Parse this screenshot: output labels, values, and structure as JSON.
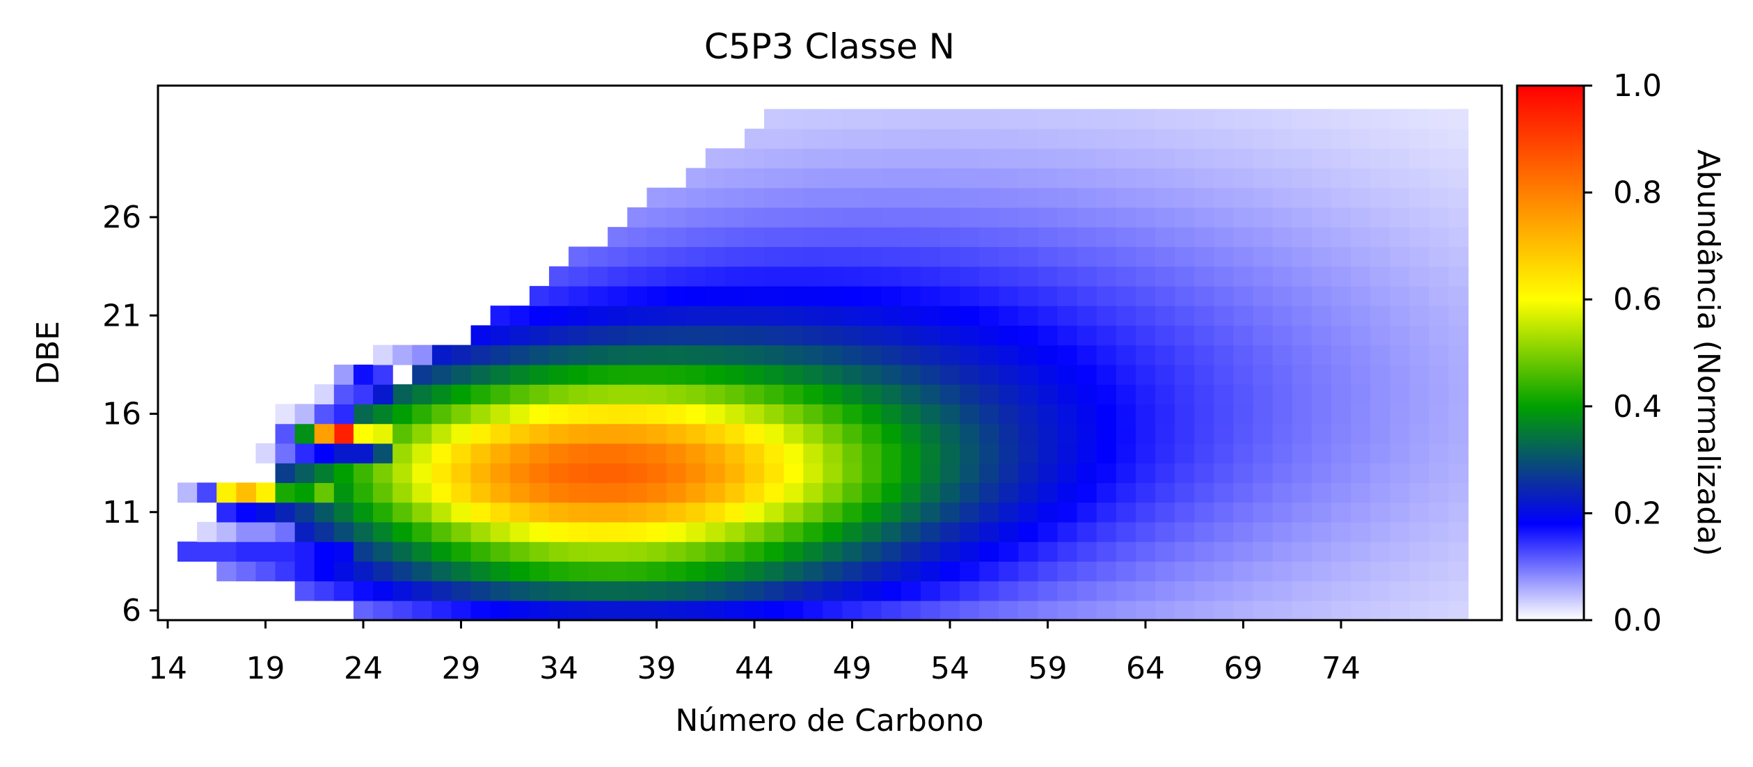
{
  "chart_data": {
    "type": "heatmap",
    "title": "C5P3 Classe N",
    "xlabel": "Número de Carbono",
    "ylabel": "DBE",
    "colorbar_label": "Abundância (Normalizada)",
    "x_range": [
      14,
      81
    ],
    "y_range": [
      6,
      32
    ],
    "xticks": [
      14,
      19,
      24,
      29,
      34,
      39,
      44,
      49,
      54,
      59,
      64,
      69,
      74
    ],
    "yticks": [
      6,
      11,
      16,
      21,
      26
    ],
    "colorbar_ticks": [
      "0.0",
      "0.2",
      "0.4",
      "0.6",
      "0.8",
      "1.0"
    ],
    "colorbar_range": [
      0,
      1
    ],
    "colormap": [
      "#ffffff",
      "#0000ff",
      "#00a000",
      "#ffff00",
      "#ff0000"
    ],
    "cells": [
      [
        14,
        9,
        0.12
      ],
      [
        15,
        9,
        0.14
      ],
      [
        16,
        9,
        0.14
      ],
      [
        17,
        9,
        0.14
      ],
      [
        18,
        9,
        0.15
      ],
      [
        19,
        9,
        0.15
      ],
      [
        20,
        9,
        0.15
      ],
      [
        21,
        9,
        0.16
      ],
      [
        22,
        9,
        0.18
      ],
      [
        23,
        9,
        0.19
      ],
      [
        16,
        10,
        0.03
      ],
      [
        17,
        10,
        0.05
      ],
      [
        18,
        10,
        0.08
      ],
      [
        19,
        10,
        0.08
      ],
      [
        20,
        10,
        0.1
      ],
      [
        15,
        12,
        0.05
      ],
      [
        16,
        12,
        0.13
      ],
      [
        17,
        12,
        0.62
      ],
      [
        18,
        12,
        0.7
      ],
      [
        19,
        12,
        0.62
      ],
      [
        20,
        12,
        0.42
      ],
      [
        21,
        12,
        0.4
      ],
      [
        22,
        12,
        0.48
      ],
      [
        19,
        14,
        0.03
      ],
      [
        20,
        14,
        0.1
      ],
      [
        21,
        14,
        0.15
      ],
      [
        22,
        14,
        0.18
      ],
      [
        23,
        14,
        0.22
      ],
      [
        24,
        14,
        0.22
      ],
      [
        25,
        14,
        0.3
      ],
      [
        20,
        15,
        0.12
      ],
      [
        21,
        15,
        0.38
      ],
      [
        22,
        15,
        0.75
      ],
      [
        23,
        15,
        0.95
      ],
      [
        24,
        15,
        0.6
      ],
      [
        25,
        15,
        0.58
      ],
      [
        20,
        16,
        0.02
      ],
      [
        21,
        16,
        0.05
      ],
      [
        22,
        16,
        0.12
      ],
      [
        23,
        16,
        0.15
      ],
      [
        22,
        17,
        0.03
      ],
      [
        23,
        17,
        0.12
      ],
      [
        24,
        17,
        0.14
      ],
      [
        25,
        17,
        0.22
      ],
      [
        23,
        18,
        0.07
      ],
      [
        24,
        18,
        0.17
      ],
      [
        25,
        18,
        0.14
      ],
      [
        25,
        19,
        0.03
      ],
      [
        26,
        19,
        0.06
      ],
      [
        27,
        19,
        0.08
      ]
    ],
    "blobs": [
      {
        "cx": 35,
        "cy": 12.8,
        "sx": 10,
        "sy": 3.3,
        "amp": 0.6
      },
      {
        "cx": 40,
        "cy": 14.5,
        "sx": 13,
        "sy": 5.6,
        "amp": 0.18
      },
      {
        "cx": 50,
        "cy": 17,
        "sx": 18,
        "sy": 8,
        "amp": 0.1
      },
      {
        "cx": 62,
        "cy": 17,
        "sx": 20,
        "sy": 11,
        "amp": 0.05
      },
      {
        "cx": 35,
        "cy": 7.5,
        "sx": 10,
        "sy": 1.3,
        "amp": 0.09
      }
    ]
  }
}
